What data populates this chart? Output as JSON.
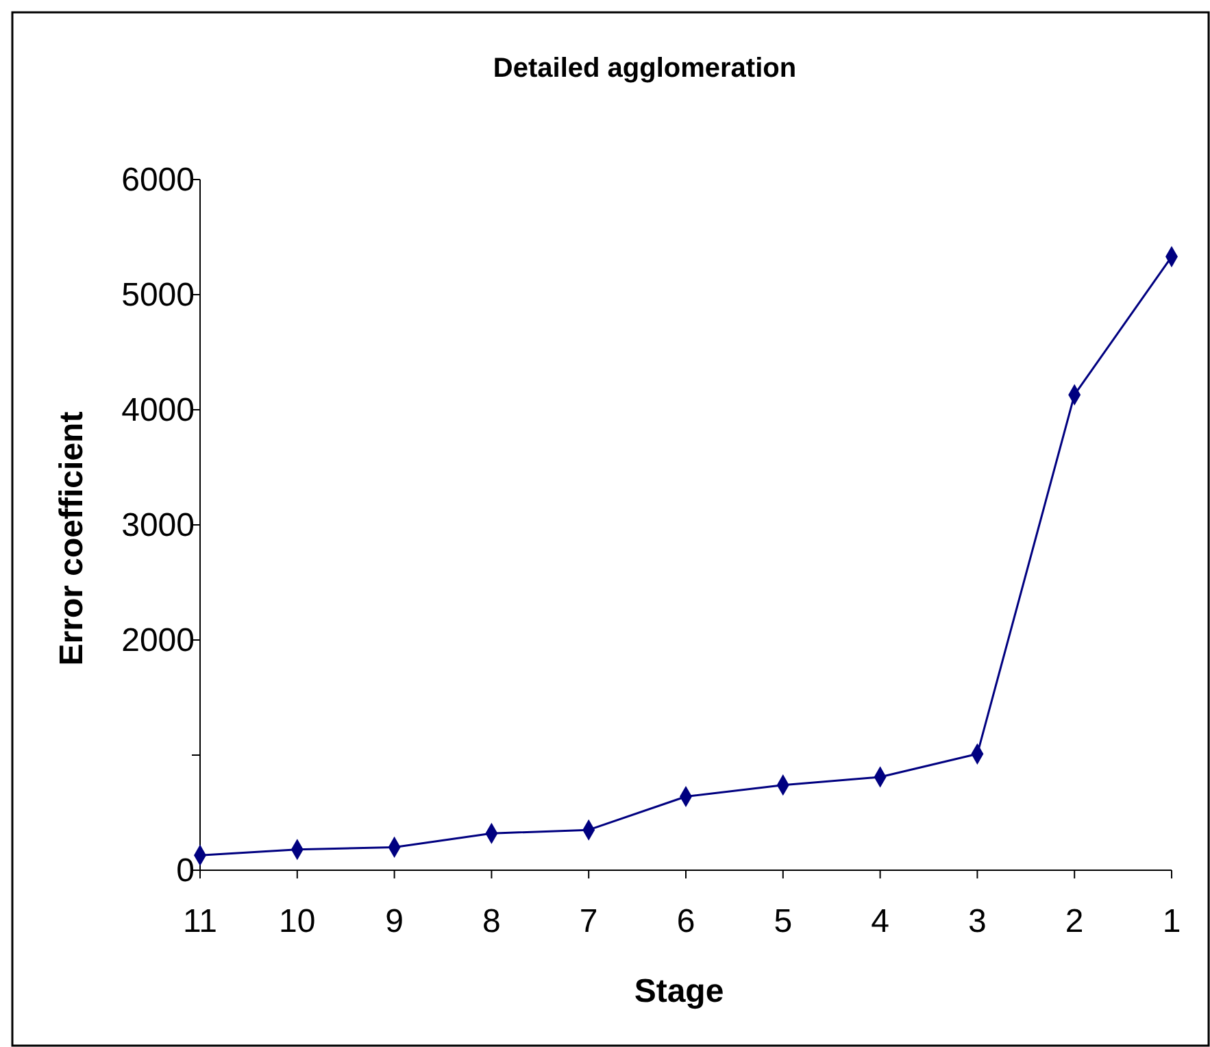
{
  "chart_data": {
    "type": "line",
    "title": "Detailed agglomeration",
    "xlabel": "Stage",
    "ylabel": "Error coefficient",
    "categories": [
      "11",
      "10",
      "9",
      "8",
      "7",
      "6",
      "5",
      "4",
      "3",
      "2",
      "1"
    ],
    "series": [
      {
        "color": "#000080",
        "values": [
          130,
          180,
          200,
          320,
          350,
          640,
          740,
          810,
          1010,
          4130,
          5330
        ]
      }
    ],
    "ylim": [
      0,
      6000
    ],
    "yticks": [
      0,
      {
        "value": 1000,
        "label": null
      },
      2000,
      3000,
      4000,
      5000,
      6000
    ],
    "grid": false,
    "marker": "diamond",
    "line_style": "solid"
  }
}
